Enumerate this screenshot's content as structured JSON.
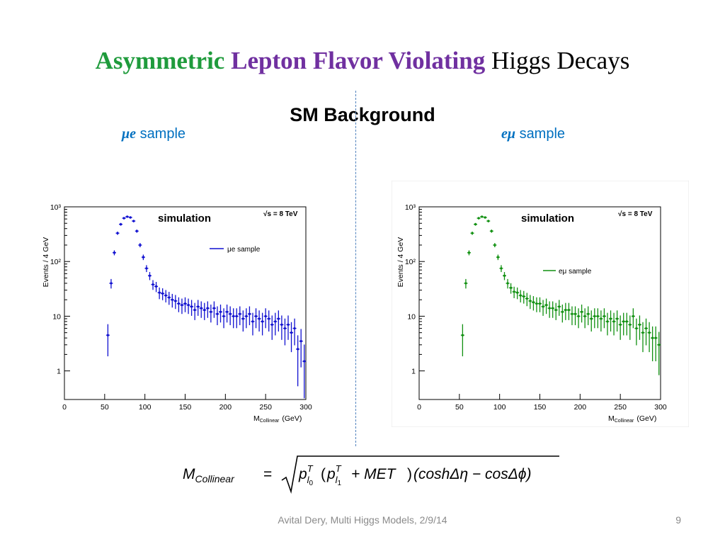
{
  "slide": {
    "title_parts": {
      "word1": "Asymmetric",
      "word2": "Lepton Flavor Violating",
      "word3": "Higgs Decays"
    },
    "subtitle": "SM Background",
    "left_sample": {
      "symbol": "μe",
      "text": "sample"
    },
    "right_sample": {
      "symbol": "eμ",
      "text": "sample"
    },
    "footer": "Avital Dery, Multi Higgs Models, 2/9/14",
    "page_number": "9",
    "colors": {
      "green": "#1f9b3c",
      "purple": "#7030a0",
      "blue": "#0070c0",
      "series_blue": "#1010d0",
      "series_green": "#109010"
    }
  },
  "formula": {
    "lhs": "M",
    "lhs_sub": "Collinear",
    "eq": "=",
    "p": "p",
    "sup": "T",
    "sub_l": "l",
    "idx0": "0",
    "idx1": "1",
    "plus": "+ MET",
    "rest": "(coshΔη − cosΔϕ)"
  },
  "chart_data": [
    {
      "type": "scatter",
      "id": "mue",
      "ylabel": "Events / 4 GeV",
      "xlabel_main": "M",
      "xlabel_sub": "Collinear",
      "xlabel_unit": "(GeV)",
      "annotation": "simulation",
      "energy_label": "√s = 8 TeV",
      "legend": "μe sample",
      "legend_position": "top-right",
      "xlim": [
        0,
        300
      ],
      "ylim": [
        0.3,
        1000
      ],
      "yscale": "log",
      "x_ticks": [
        0,
        50,
        100,
        150,
        200,
        250,
        300
      ],
      "y_ticks": [
        {
          "v": 1,
          "label": "1"
        },
        {
          "v": 10,
          "label": "10"
        },
        {
          "v": 100,
          "label": "10²"
        },
        {
          "v": 1000,
          "label": "10³"
        }
      ],
      "x": [
        54,
        58,
        62,
        66,
        70,
        74,
        78,
        82,
        86,
        90,
        94,
        98,
        102,
        106,
        110,
        114,
        118,
        122,
        126,
        130,
        134,
        138,
        142,
        146,
        150,
        154,
        158,
        162,
        166,
        170,
        174,
        178,
        182,
        186,
        190,
        194,
        198,
        202,
        206,
        210,
        214,
        218,
        222,
        226,
        230,
        234,
        238,
        242,
        246,
        250,
        254,
        258,
        262,
        266,
        270,
        274,
        278,
        282,
        286,
        290,
        294,
        298
      ],
      "values": [
        4.5,
        40,
        145,
        330,
        480,
        620,
        660,
        640,
        550,
        360,
        200,
        120,
        75,
        55,
        38,
        35,
        27,
        26,
        24,
        22,
        20,
        19,
        17,
        16,
        17,
        16,
        15,
        13,
        15,
        14,
        13,
        14,
        12,
        14,
        11,
        12,
        10,
        12,
        11,
        10,
        10,
        11,
        9,
        10,
        11,
        8,
        10,
        9,
        8,
        10,
        9,
        7,
        8,
        9,
        7,
        6,
        7,
        5,
        6,
        2.5,
        3.5,
        1.5
      ],
      "color": "#1010d0"
    },
    {
      "type": "scatter",
      "id": "emu",
      "ylabel": "Events / 4 GeV",
      "xlabel_main": "M",
      "xlabel_sub": "Collinear",
      "xlabel_unit": "(GeV)",
      "annotation": "simulation",
      "energy_label": "√s = 8 TeV",
      "legend": "eμ sample",
      "legend_position": "top-right",
      "xlim": [
        0,
        300
      ],
      "ylim": [
        0.3,
        1000
      ],
      "yscale": "log",
      "x_ticks": [
        0,
        50,
        100,
        150,
        200,
        250,
        300
      ],
      "y_ticks": [
        {
          "v": 1,
          "label": "1"
        },
        {
          "v": 10,
          "label": "10"
        },
        {
          "v": 100,
          "label": "10²"
        },
        {
          "v": 1000,
          "label": "10³"
        }
      ],
      "x": [
        54,
        58,
        62,
        66,
        70,
        74,
        78,
        82,
        86,
        90,
        94,
        98,
        102,
        106,
        110,
        114,
        118,
        122,
        126,
        130,
        134,
        138,
        142,
        146,
        150,
        154,
        158,
        162,
        166,
        170,
        174,
        178,
        182,
        186,
        190,
        194,
        198,
        202,
        206,
        210,
        214,
        218,
        222,
        226,
        230,
        234,
        238,
        242,
        246,
        250,
        254,
        258,
        262,
        266,
        270,
        274,
        278,
        282,
        286,
        290,
        294,
        298
      ],
      "values": [
        4.5,
        40,
        145,
        330,
        480,
        620,
        660,
        640,
        550,
        360,
        200,
        120,
        75,
        55,
        40,
        33,
        28,
        27,
        24,
        23,
        21,
        19,
        18,
        17,
        17,
        15,
        16,
        14,
        14,
        13,
        15,
        12,
        13,
        13,
        11,
        11,
        10,
        12,
        10,
        11,
        9,
        10,
        10,
        9,
        10,
        8,
        9,
        8,
        9,
        7,
        8,
        8,
        7,
        10,
        6,
        7,
        5,
        6,
        5,
        4,
        4,
        3
      ],
      "color": "#109010"
    }
  ]
}
